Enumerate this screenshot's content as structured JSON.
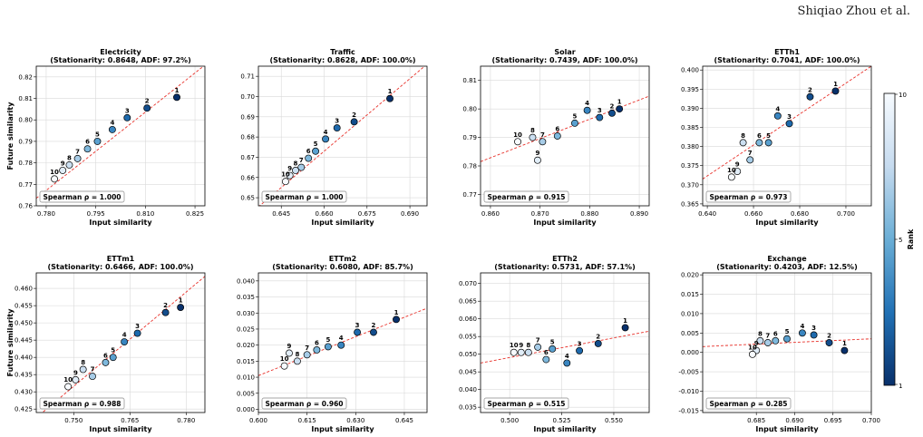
{
  "header": {
    "author": "Shiqiao Zhou et al."
  },
  "colorbar": {
    "label": "Rank",
    "ticks": [
      "10",
      "5",
      "1"
    ],
    "cmap_light": "#f7fbff",
    "cmap_mid": "#6aaed6",
    "cmap_dark": "#08306b"
  },
  "chart_data": [
    {
      "type": "scatter",
      "title": "Electricity",
      "subtitle": "(Stationarity: 0.8648, ADF: 97.2%)",
      "xlabel": "Input similarity",
      "ylabel": "Future similarity",
      "xlim": [
        0.777,
        0.828
      ],
      "ylim": [
        0.76,
        0.825
      ],
      "xticks": [
        "0.780",
        "0.795",
        "0.810",
        "0.825"
      ],
      "yticks": [
        "0.76",
        "0.77",
        "0.78",
        "0.79",
        "0.80",
        "0.81",
        "0.82"
      ],
      "spearman": "Spearman ρ = 1.000",
      "fit": [
        [
          0.777,
          0.7635
        ],
        [
          0.828,
          0.8255
        ]
      ],
      "points": [
        {
          "rank": "1",
          "x": 0.8195,
          "y": 0.8105
        },
        {
          "rank": "2",
          "x": 0.8105,
          "y": 0.8055
        },
        {
          "rank": "3",
          "x": 0.8045,
          "y": 0.801
        },
        {
          "rank": "4",
          "x": 0.8,
          "y": 0.7955
        },
        {
          "rank": "5",
          "x": 0.7955,
          "y": 0.79
        },
        {
          "rank": "6",
          "x": 0.7925,
          "y": 0.7865
        },
        {
          "rank": "7",
          "x": 0.7895,
          "y": 0.782
        },
        {
          "rank": "8",
          "x": 0.787,
          "y": 0.779
        },
        {
          "rank": "9",
          "x": 0.785,
          "y": 0.7765
        },
        {
          "rank": "10",
          "x": 0.7825,
          "y": 0.7725
        }
      ]
    },
    {
      "type": "scatter",
      "title": "Traffic",
      "subtitle": "(Stationarity: 0.8628, ADF: 100.0%)",
      "xlabel": "Input similarity",
      "ylabel": "",
      "xlim": [
        0.637,
        0.696
      ],
      "ylim": [
        0.646,
        0.715
      ],
      "xticks": [
        "0.645",
        "0.660",
        "0.675",
        "0.690"
      ],
      "yticks": [
        "0.65",
        "0.66",
        "0.67",
        "0.68",
        "0.69",
        "0.70",
        "0.71"
      ],
      "spearman": "Spearman ρ = 1.000",
      "fit": [
        [
          0.637,
          0.6455
        ],
        [
          0.696,
          0.716
        ]
      ],
      "points": [
        {
          "rank": "1",
          "x": 0.683,
          "y": 0.699
        },
        {
          "rank": "2",
          "x": 0.6705,
          "y": 0.6875
        },
        {
          "rank": "3",
          "x": 0.6645,
          "y": 0.6845
        },
        {
          "rank": "4",
          "x": 0.6605,
          "y": 0.679
        },
        {
          "rank": "5",
          "x": 0.657,
          "y": 0.673
        },
        {
          "rank": "6",
          "x": 0.6545,
          "y": 0.6695
        },
        {
          "rank": "7",
          "x": 0.652,
          "y": 0.665
        },
        {
          "rank": "8",
          "x": 0.65,
          "y": 0.6635
        },
        {
          "rank": "9",
          "x": 0.648,
          "y": 0.661
        },
        {
          "rank": "10",
          "x": 0.6465,
          "y": 0.658
        }
      ]
    },
    {
      "type": "scatter",
      "title": "Solar",
      "subtitle": "(Stationarity: 0.7439, ADF: 100.0%)",
      "xlabel": "Input similarity",
      "ylabel": "",
      "xlim": [
        0.858,
        0.892
      ],
      "ylim": [
        0.766,
        0.815
      ],
      "xticks": [
        "0.860",
        "0.870",
        "0.880",
        "0.890"
      ],
      "yticks": [
        "0.77",
        "0.78",
        "0.79",
        "0.80",
        "0.81"
      ],
      "spearman": "Spearman ρ = 0.915",
      "fit": [
        [
          0.858,
          0.7815
        ],
        [
          0.892,
          0.8045
        ]
      ],
      "points": [
        {
          "rank": "1",
          "x": 0.886,
          "y": 0.8
        },
        {
          "rank": "2",
          "x": 0.8845,
          "y": 0.7985
        },
        {
          "rank": "3",
          "x": 0.882,
          "y": 0.797
        },
        {
          "rank": "4",
          "x": 0.8795,
          "y": 0.7995
        },
        {
          "rank": "5",
          "x": 0.877,
          "y": 0.795
        },
        {
          "rank": "6",
          "x": 0.8735,
          "y": 0.7905
        },
        {
          "rank": "7",
          "x": 0.8705,
          "y": 0.7885
        },
        {
          "rank": "8",
          "x": 0.8685,
          "y": 0.79
        },
        {
          "rank": "9",
          "x": 0.8695,
          "y": 0.782
        },
        {
          "rank": "10",
          "x": 0.8655,
          "y": 0.7885
        }
      ]
    },
    {
      "type": "scatter",
      "title": "ETTh1",
      "subtitle": "(Stationarity: 0.7041, ADF: 100.0%)",
      "xlabel": "Input similarity",
      "ylabel": "",
      "xlim": [
        0.638,
        0.711
      ],
      "ylim": [
        0.3645,
        0.401
      ],
      "xticks": [
        "0.640",
        "0.660",
        "0.680",
        "0.700"
      ],
      "yticks": [
        "0.365",
        "0.370",
        "0.375",
        "0.380",
        "0.385",
        "0.390",
        "0.395",
        "0.400"
      ],
      "spearman": "Spearman ρ = 0.973",
      "fit": [
        [
          0.638,
          0.3715
        ],
        [
          0.711,
          0.401
        ]
      ],
      "points": [
        {
          "rank": "1",
          "x": 0.6955,
          "y": 0.3945
        },
        {
          "rank": "2",
          "x": 0.6845,
          "y": 0.393
        },
        {
          "rank": "3",
          "x": 0.6755,
          "y": 0.386
        },
        {
          "rank": "4",
          "x": 0.6705,
          "y": 0.388
        },
        {
          "rank": "5",
          "x": 0.6665,
          "y": 0.381
        },
        {
          "rank": "6",
          "x": 0.6625,
          "y": 0.381
        },
        {
          "rank": "7",
          "x": 0.6585,
          "y": 0.3765
        },
        {
          "rank": "8",
          "x": 0.6555,
          "y": 0.381
        },
        {
          "rank": "9",
          "x": 0.653,
          "y": 0.3735
        },
        {
          "rank": "10",
          "x": 0.6505,
          "y": 0.372
        }
      ]
    },
    {
      "type": "scatter",
      "title": "ETTm1",
      "subtitle": "(Stationarity: 0.6466, ADF: 100.0%)",
      "xlabel": "Input similarity",
      "ylabel": "Future similarity",
      "xlim": [
        0.74,
        0.785
      ],
      "ylim": [
        0.424,
        0.4645
      ],
      "xticks": [
        "0.750",
        "0.765",
        "0.780"
      ],
      "yticks": [
        "0.425",
        "0.430",
        "0.435",
        "0.440",
        "0.445",
        "0.450",
        "0.455",
        "0.460"
      ],
      "spearman": "Spearman ρ = 0.988",
      "fit": [
        [
          0.74,
          0.4225
        ],
        [
          0.785,
          0.4635
        ]
      ],
      "points": [
        {
          "rank": "1",
          "x": 0.7785,
          "y": 0.4545
        },
        {
          "rank": "2",
          "x": 0.7745,
          "y": 0.453
        },
        {
          "rank": "3",
          "x": 0.767,
          "y": 0.447
        },
        {
          "rank": "4",
          "x": 0.7635,
          "y": 0.4445
        },
        {
          "rank": "5",
          "x": 0.7605,
          "y": 0.44
        },
        {
          "rank": "6",
          "x": 0.7585,
          "y": 0.4385
        },
        {
          "rank": "7",
          "x": 0.755,
          "y": 0.4345
        },
        {
          "rank": "8",
          "x": 0.7525,
          "y": 0.4365
        },
        {
          "rank": "9",
          "x": 0.7505,
          "y": 0.4335
        },
        {
          "rank": "10",
          "x": 0.7485,
          "y": 0.4315
        }
      ]
    },
    {
      "type": "scatter",
      "title": "ETTm2",
      "subtitle": "(Stationarity: 0.6080, ADF: 85.7%)",
      "xlabel": "Input similarity",
      "ylabel": "",
      "xlim": [
        0.6,
        0.652
      ],
      "ylim": [
        -0.001,
        0.0425
      ],
      "xticks": [
        "0.600",
        "0.615",
        "0.630",
        "0.645"
      ],
      "yticks": [
        "0.000",
        "0.005",
        "0.010",
        "0.015",
        "0.020",
        "0.025",
        "0.030",
        "0.035",
        "0.040"
      ],
      "spearman": "Spearman ρ = 0.960",
      "fit": [
        [
          0.6,
          0.0105
        ],
        [
          0.652,
          0.0315
        ]
      ],
      "points": [
        {
          "rank": "1",
          "x": 0.6425,
          "y": 0.028
        },
        {
          "rank": "2",
          "x": 0.6355,
          "y": 0.024
        },
        {
          "rank": "3",
          "x": 0.6305,
          "y": 0.024
        },
        {
          "rank": "4",
          "x": 0.6255,
          "y": 0.02
        },
        {
          "rank": "5",
          "x": 0.6215,
          "y": 0.0195
        },
        {
          "rank": "6",
          "x": 0.618,
          "y": 0.0185
        },
        {
          "rank": "7",
          "x": 0.615,
          "y": 0.017
        },
        {
          "rank": "8",
          "x": 0.612,
          "y": 0.015
        },
        {
          "rank": "9",
          "x": 0.6095,
          "y": 0.0175
        },
        {
          "rank": "10",
          "x": 0.608,
          "y": 0.0135
        }
      ]
    },
    {
      "type": "scatter",
      "title": "ETTh2",
      "subtitle": "(Stationarity: 0.5731, ADF: 57.1%)",
      "xlabel": "Input similarity",
      "ylabel": "",
      "xlim": [
        0.486,
        0.567
      ],
      "ylim": [
        0.0335,
        0.073
      ],
      "xticks": [
        "0.500",
        "0.525",
        "0.550"
      ],
      "yticks": [
        "0.035",
        "0.040",
        "0.045",
        "0.050",
        "0.055",
        "0.060",
        "0.065",
        "0.070"
      ],
      "spearman": "Spearman ρ = 0.515",
      "fit": [
        [
          0.486,
          0.0475
        ],
        [
          0.567,
          0.0565
        ]
      ],
      "points": [
        {
          "rank": "1",
          "x": 0.5555,
          "y": 0.0575
        },
        {
          "rank": "2",
          "x": 0.5425,
          "y": 0.053
        },
        {
          "rank": "3",
          "x": 0.5335,
          "y": 0.051
        },
        {
          "rank": "4",
          "x": 0.5275,
          "y": 0.0475
        },
        {
          "rank": "5",
          "x": 0.5205,
          "y": 0.0515
        },
        {
          "rank": "6",
          "x": 0.5175,
          "y": 0.0485
        },
        {
          "rank": "7",
          "x": 0.5135,
          "y": 0.052
        },
        {
          "rank": "8",
          "x": 0.509,
          "y": 0.0505
        },
        {
          "rank": "9",
          "x": 0.5055,
          "y": 0.0505
        },
        {
          "rank": "10",
          "x": 0.502,
          "y": 0.0505
        }
      ]
    },
    {
      "type": "scatter",
      "title": "Exchange",
      "subtitle": "(Stationarity: 0.4203, ADF: 12.5%)",
      "xlabel": "Input similarity",
      "ylabel": "",
      "xlim": [
        0.678,
        0.7
      ],
      "ylim": [
        -0.0155,
        0.0205
      ],
      "xticks": [
        "0.685",
        "0.690",
        "0.695",
        "0.700"
      ],
      "yticks": [
        "-0.015",
        "-0.010",
        "-0.005",
        "0.000",
        "0.005",
        "0.010",
        "0.015",
        "0.020"
      ],
      "spearman": "Spearman ρ = 0.285",
      "fit": [
        [
          0.678,
          0.0015
        ],
        [
          0.7,
          0.0035
        ]
      ],
      "points": [
        {
          "rank": "1",
          "x": 0.6965,
          "y": 0.0005
        },
        {
          "rank": "2",
          "x": 0.6945,
          "y": 0.0025
        },
        {
          "rank": "3",
          "x": 0.6925,
          "y": 0.0045
        },
        {
          "rank": "4",
          "x": 0.691,
          "y": 0.005
        },
        {
          "rank": "5",
          "x": 0.689,
          "y": 0.0035
        },
        {
          "rank": "6",
          "x": 0.6875,
          "y": 0.003
        },
        {
          "rank": "7",
          "x": 0.6865,
          "y": 0.0025
        },
        {
          "rank": "8",
          "x": 0.6855,
          "y": 0.003
        },
        {
          "rank": "9",
          "x": 0.685,
          "y": 0.0005
        },
        {
          "rank": "10",
          "x": 0.6845,
          "y": -0.0005
        }
      ]
    }
  ]
}
